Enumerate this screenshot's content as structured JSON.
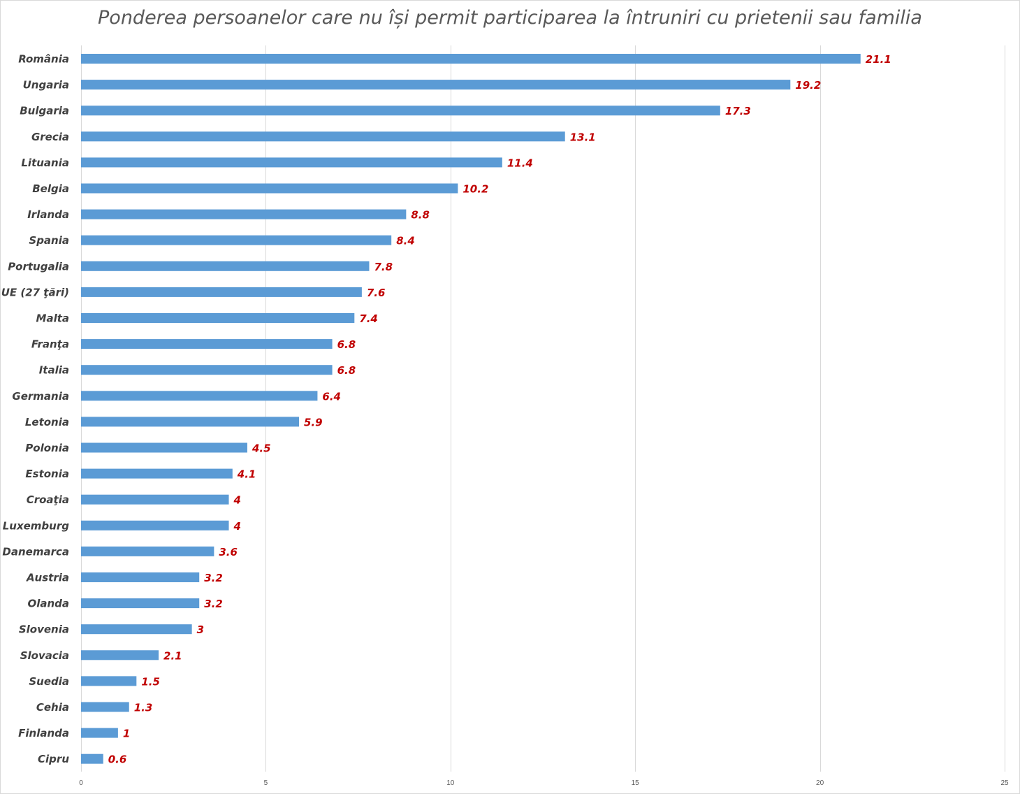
{
  "chart_data": {
    "type": "bar",
    "orientation": "horizontal",
    "title": "Ponderea persoanelor care nu își permit participarea la întruniri cu prietenii sau familia",
    "xlabel": "",
    "ylabel": "",
    "xlim": [
      0,
      25
    ],
    "x_ticks": [
      0,
      5,
      10,
      15,
      20,
      25
    ],
    "grid": true,
    "legend": "none",
    "categories": [
      "România",
      "Ungaria",
      "Bulgaria",
      "Grecia",
      "Lituania",
      "Belgia",
      "Irlanda",
      "Spania",
      "Portugalia",
      "UE (27 ţări)",
      "Malta",
      "Franţa",
      "Italia",
      "Germania",
      "Letonia",
      "Polonia",
      "Estonia",
      "Croaţia",
      "Luxemburg",
      "Danemarca",
      "Austria",
      "Olanda",
      "Slovenia",
      "Slovacia",
      "Suedia",
      "Cehia",
      "Finlanda",
      "Cipru"
    ],
    "values": [
      21.1,
      19.2,
      17.3,
      13.1,
      11.4,
      10.2,
      8.8,
      8.4,
      7.8,
      7.6,
      7.4,
      6.8,
      6.8,
      6.4,
      5.9,
      4.5,
      4.1,
      4,
      4,
      3.6,
      3.2,
      3.2,
      3,
      2.1,
      1.5,
      1.3,
      1,
      0.6
    ],
    "value_labels": [
      "21.1",
      "19.2",
      "17.3",
      "13.1",
      "11.4",
      "10.2",
      "8.8",
      "8.4",
      "7.8",
      "7.6",
      "7.4",
      "6.8",
      "6.8",
      "6.4",
      "5.9",
      "4.5",
      "4.1",
      "4",
      "4",
      "3.6",
      "3.2",
      "3.2",
      "3",
      "2.1",
      "1.5",
      "1.3",
      "1",
      "0.6"
    ],
    "colors": {
      "bar": "#5b9bd5",
      "data_label": "#c00000",
      "category_label": "#404040",
      "title": "#595959",
      "gridline": "#d9d9d9"
    }
  }
}
